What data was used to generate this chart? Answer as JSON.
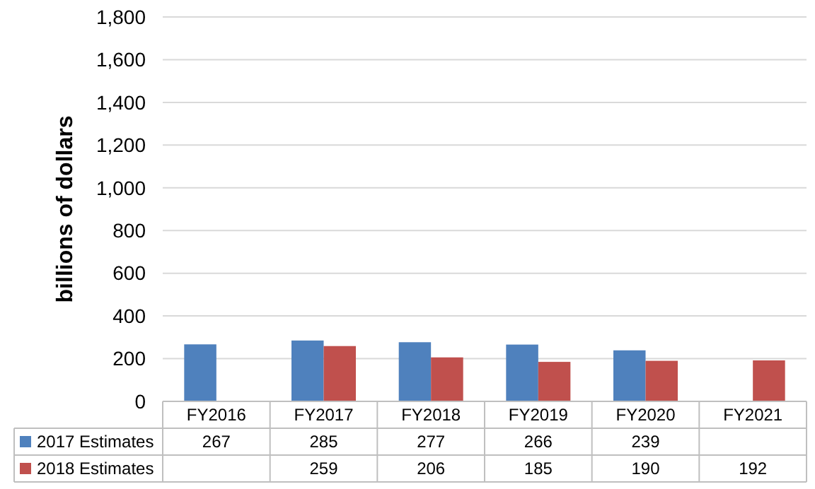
{
  "chart_data": {
    "type": "bar",
    "ylabel": "billions of dollars",
    "categories": [
      "FY2016",
      "FY2017",
      "FY2018",
      "FY2019",
      "FY2020",
      "FY2021"
    ],
    "series": [
      {
        "name": "2017 Estimates",
        "color": "#4f81bd",
        "values": [
          267,
          285,
          277,
          266,
          239,
          null
        ]
      },
      {
        "name": "2018 Estimates",
        "color": "#c0504d",
        "values": [
          null,
          259,
          206,
          185,
          190,
          192
        ]
      }
    ],
    "ylim": [
      0,
      1800
    ],
    "yticks": [
      0,
      {
        "value": 200,
        "label": "200"
      },
      {
        "value": 400,
        "label": "400"
      },
      {
        "value": 600,
        "label": "600"
      },
      {
        "value": 800,
        "label": "800"
      },
      {
        "value": 1000,
        "label": "1,000"
      },
      {
        "value": 1200,
        "label": "1,200"
      },
      {
        "value": 1400,
        "label": "1,400"
      },
      {
        "value": 1600,
        "label": "1,600"
      },
      {
        "value": 1800,
        "label": "1,800"
      }
    ],
    "grid": "y",
    "data_labels": true,
    "legend": "bottom left"
  }
}
